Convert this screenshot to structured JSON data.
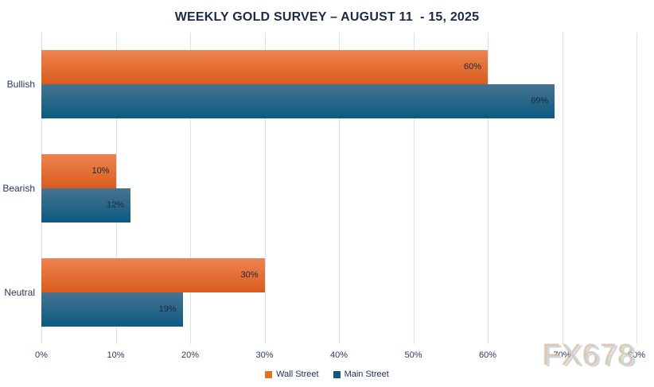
{
  "title": "WEEKLY GOLD SURVEY – AUGUST 11  - 15, 2025",
  "watermark": "FX678",
  "legend": {
    "items": [
      {
        "label": "Wall Street",
        "color": "#E8701F"
      },
      {
        "label": "Main Street",
        "color": "#14587D"
      }
    ]
  },
  "colors": {
    "title_text": "#1B2A47",
    "axis_text": "#2B3D5E",
    "bar_value_text": "#1A2A40",
    "gridline": "#D2E3F1",
    "wall_street_gradient_top": "#EE8351",
    "wall_street_gradient_bottom": "#D95C1D",
    "main_street_gradient_top": "#477390",
    "main_street_gradient_bottom": "#0C5A81",
    "watermark_text": "#CBD3DC",
    "watermark_shadow": "#D2B28C"
  },
  "chart_data": {
    "type": "bar",
    "orientation": "horizontal",
    "title": "WEEKLY GOLD SURVEY – AUGUST 11  - 15, 2025",
    "categories": [
      "Bullish",
      "Bearish",
      "Neutral"
    ],
    "series": [
      {
        "name": "Wall Street",
        "values": [
          60,
          10,
          30
        ]
      },
      {
        "name": "Main Street",
        "values": [
          69,
          12,
          19
        ]
      }
    ],
    "value_label_suffix": "%",
    "xlabel": "",
    "ylabel": "",
    "xlim": [
      0,
      80
    ],
    "x_ticks": [
      "0%",
      "10%",
      "20%",
      "30%",
      "40%",
      "50%",
      "60%",
      "70%",
      "80%"
    ],
    "x_tick_values": [
      0,
      10,
      20,
      30,
      40,
      50,
      60,
      70,
      80
    ],
    "grid": true,
    "legend_position": "bottom"
  }
}
